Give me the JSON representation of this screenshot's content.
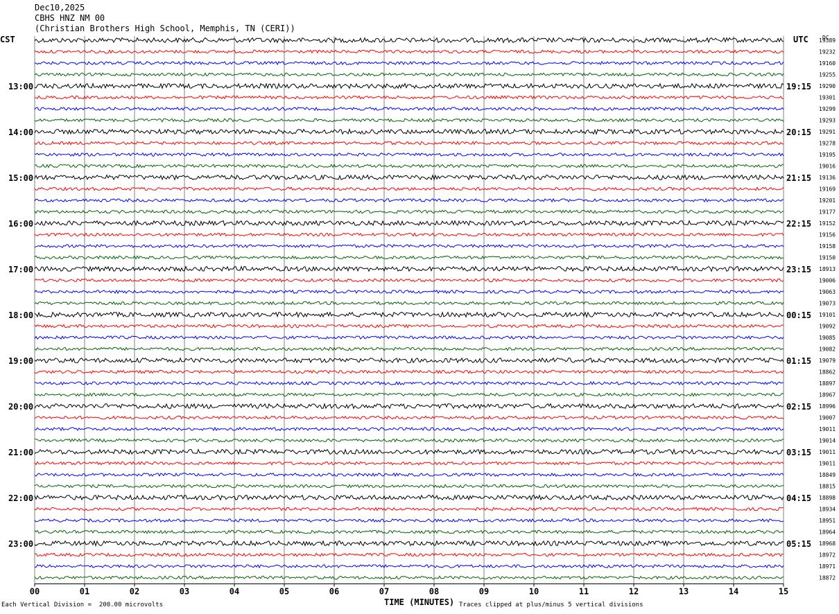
{
  "header": {
    "date": "Dec10,2025",
    "station": "CBHS HNZ NM 00",
    "location": "(Christian Brothers High School, Memphis, TN (CERI))"
  },
  "axes": {
    "left_tz": "CST",
    "right_tz": "UTC",
    "dc_label": "DC",
    "x_title": "TIME (MINUTES)"
  },
  "footer": {
    "scale_note": "Each Vertical Division =  200.00 microvolts",
    "clip_note": "Traces clipped at plus/minus 5 vertical divisions"
  },
  "colors": {
    "cycle": [
      "#000000",
      "#ff0000",
      "#0000ff",
      "#006400"
    ],
    "grid": "#808080"
  },
  "chart_data": {
    "type": "line",
    "title": "CBHS HNZ NM 00",
    "xlabel": "TIME (MINUTES)",
    "ylabel": "",
    "xlim": [
      0,
      15
    ],
    "x_ticks": [
      "00",
      "01",
      "02",
      "03",
      "04",
      "05",
      "06",
      "07",
      "08",
      "09",
      "10",
      "11",
      "12",
      "13",
      "14",
      "15"
    ],
    "left_hour_labels": [
      "13:00",
      "14:00",
      "15:00",
      "16:00",
      "17:00",
      "18:00",
      "19:00",
      "20:00",
      "21:00",
      "22:00",
      "23:00"
    ],
    "right_hour_labels": [
      "19:15",
      "20:15",
      "21:15",
      "22:15",
      "23:15",
      "00:15",
      "01:15",
      "02:15",
      "03:15",
      "04:15",
      "05:15"
    ],
    "hour_label_start_row": 4,
    "trace_count": 48,
    "dc_offsets": [
      19389,
      19232,
      19160,
      19255,
      19290,
      19301,
      19299,
      19293,
      19291,
      19278,
      19195,
      19016,
      19136,
      19169,
      19201,
      19177,
      19152,
      19156,
      19158,
      19150,
      18913,
      19006,
      19063,
      19073,
      19101,
      19092,
      19085,
      19082,
      19079,
      18862,
      18897,
      18967,
      18996,
      19007,
      19011,
      19014,
      19011,
      19011,
      18849,
      18815,
      18898,
      18934,
      18951,
      18964,
      18968,
      18972,
      18971,
      18872
    ]
  }
}
